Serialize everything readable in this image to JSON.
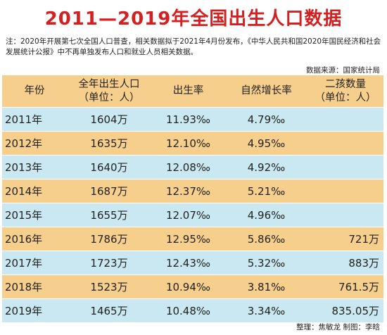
{
  "title": "2011—2019年全国出生人口数据",
  "note": "注：2020年开展第七次全国人口普查，相关数据拟于2021年4月份发布，《中华人民共和国2020年国民经济和社会发展统计公报》中不再单独发布人口和就业人员相关数据。",
  "source": "数据来源：国家统计局",
  "header": {
    "year": "年份",
    "births_line1": "全年出生人口",
    "births_line2": "（单位：人）",
    "birth_rate": "出生率",
    "growth_rate": "自然增长率",
    "second_line1": "二孩数量",
    "second_line2": "（单位：人）"
  },
  "rows": [
    {
      "year": "2011年",
      "births": "1604万",
      "birth_rate": "11.93‰",
      "growth_rate": "4.79‰",
      "second_child": ""
    },
    {
      "year": "2012年",
      "births": "1635万",
      "birth_rate": "12.10‰",
      "growth_rate": "4.95‰",
      "second_child": ""
    },
    {
      "year": "2013年",
      "births": "1640万",
      "birth_rate": "12.08‰",
      "growth_rate": "4.92‰",
      "second_child": ""
    },
    {
      "year": "2014年",
      "births": "1687万",
      "birth_rate": "12.37‰",
      "growth_rate": "5.21‰",
      "second_child": ""
    },
    {
      "year": "2015年",
      "births": "1655万",
      "birth_rate": "12.07‰",
      "growth_rate": "4.96‰",
      "second_child": ""
    },
    {
      "year": "2016年",
      "births": "1786万",
      "birth_rate": "12.95‰",
      "growth_rate": "5.86‰",
      "second_child": "721万"
    },
    {
      "year": "2017年",
      "births": "1723万",
      "birth_rate": "12.43‰",
      "growth_rate": "5.32‰",
      "second_child": "883万"
    },
    {
      "year": "2018年",
      "births": "1523万",
      "birth_rate": "10.94‰",
      "growth_rate": "3.81‰",
      "second_child": "761.5万"
    },
    {
      "year": "2019年",
      "births": "1465万",
      "birth_rate": "10.48‰",
      "growth_rate": "3.34‰",
      "second_child": "835.05万"
    }
  ],
  "footer": "整理：焦敏龙  制图：李晗",
  "colors": {
    "title": "#d42020",
    "header_bg": "#f7cf8c",
    "row_blue": "#c9e8f1",
    "row_orange": "#f7cf8c"
  }
}
